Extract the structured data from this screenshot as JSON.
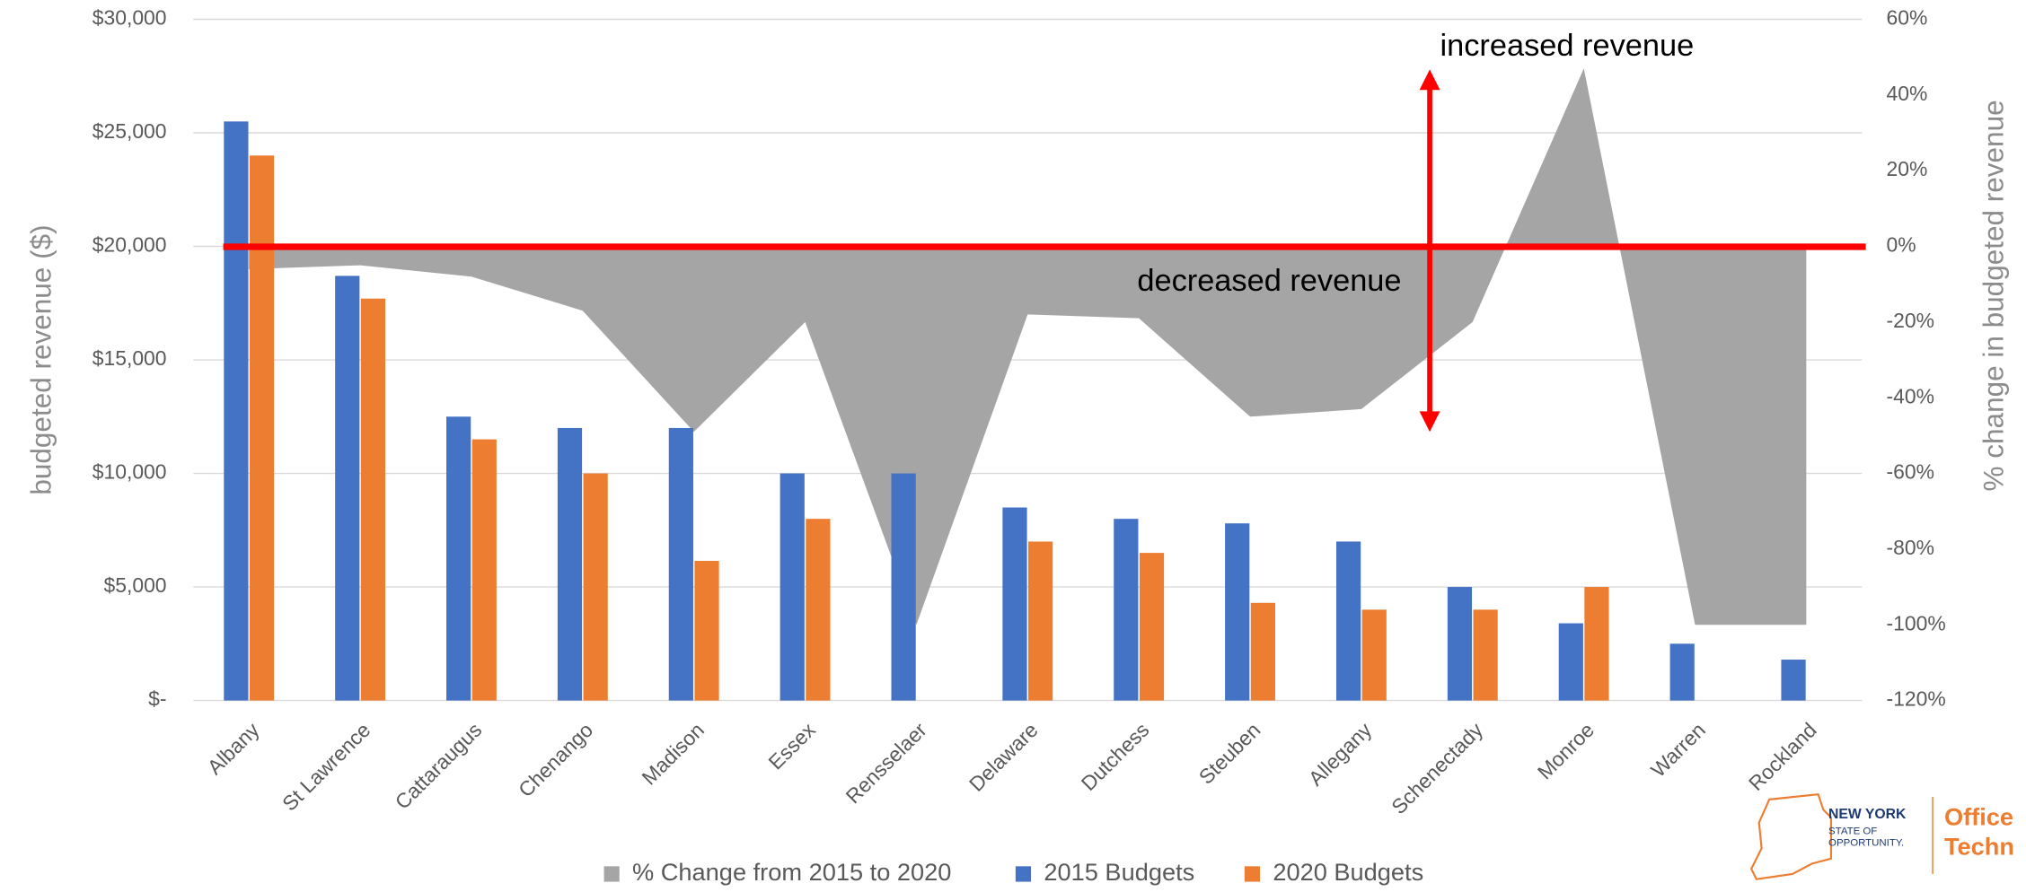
{
  "chart_data": {
    "type": "combo",
    "categories": [
      "Albany",
      "St Lawrence",
      "Cattaraugus",
      "Chenango",
      "Madison",
      "Essex",
      "Rensselaer",
      "Delaware",
      "Dutchess",
      "Steuben",
      "Allegany",
      "Schenectady",
      "Monroe",
      "Warren",
      "Rockland"
    ],
    "series": [
      {
        "name": "% Change from 2015 to 2020",
        "type": "area",
        "axis": "y2",
        "color": "#a5a5a5",
        "values": [
          -6,
          -5,
          -8,
          -17,
          -49,
          -20,
          -100,
          -18,
          -19,
          -45,
          -43,
          -20,
          47,
          -100,
          -100
        ]
      },
      {
        "name": "2015 Budgets",
        "type": "bar",
        "color": "#4472c4",
        "values": [
          25500,
          18700,
          12500,
          12000,
          12000,
          10000,
          10000,
          8500,
          8000,
          7800,
          7000,
          5000,
          3400,
          2500,
          1800
        ]
      },
      {
        "name": "2020 Budgets",
        "type": "bar",
        "color": "#ed7d31",
        "values": [
          24000,
          17700,
          11500,
          10000,
          6150,
          8000,
          0,
          7000,
          6500,
          4300,
          4000,
          4000,
          5000,
          0,
          0
        ]
      }
    ],
    "ylabel": "budgeted revenue ($)",
    "y2label": "% change in budgeted revenue",
    "ylim": [
      0,
      30000
    ],
    "yticks": [
      {
        "value": 0,
        "label": "$-"
      },
      {
        "value": 5000,
        "label": "$5,000"
      },
      {
        "value": 10000,
        "label": "$10,000"
      },
      {
        "value": 15000,
        "label": "$15,000"
      },
      {
        "value": 20000,
        "label": "$20,000"
      },
      {
        "value": 25000,
        "label": "$25,000"
      },
      {
        "value": 30000,
        "label": "$30,000"
      }
    ],
    "y2lim": [
      -120,
      60
    ],
    "y2ticks": [
      {
        "value": -120,
        "label": "-120%"
      },
      {
        "value": -100,
        "label": "-100%"
      },
      {
        "value": -80,
        "label": "-80%"
      },
      {
        "value": -60,
        "label": "-60%"
      },
      {
        "value": -40,
        "label": "-40%"
      },
      {
        "value": -20,
        "label": "-20%"
      },
      {
        "value": 0,
        "label": "0%"
      },
      {
        "value": 20,
        "label": "20%"
      },
      {
        "value": 40,
        "label": "40%"
      },
      {
        "value": 60,
        "label": "60%"
      }
    ],
    "grid": true,
    "legend": "bottom",
    "annotations": [
      "increased revenue",
      "decreased revenue"
    ],
    "logo": {
      "state": "NEW YORK",
      "tagline1": "STATE OF",
      "tagline2": "OPPORTUNITY.",
      "office1": "Office",
      "office2": "Techn"
    }
  }
}
